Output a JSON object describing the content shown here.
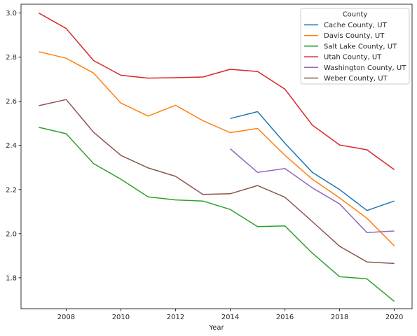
{
  "chart_data": {
    "type": "line",
    "xlabel": "Year",
    "ylabel": "",
    "xlim": [
      2006.35,
      2020.65
    ],
    "ylim": [
      1.66,
      3.04
    ],
    "x_ticks": [
      2008,
      2010,
      2012,
      2014,
      2016,
      2018,
      2020
    ],
    "y_ticks": [
      1.8,
      2.0,
      2.2,
      2.4,
      2.6,
      2.8,
      3.0
    ],
    "x_tick_labels": [
      "2008",
      "2010",
      "2012",
      "2014",
      "2016",
      "2018",
      "2020"
    ],
    "y_tick_labels": [
      "1.8",
      "2.0",
      "2.2",
      "2.4",
      "2.6",
      "2.8",
      "3.0"
    ],
    "grid": false,
    "legend": {
      "title": "County",
      "placement": "top-right"
    },
    "series": [
      {
        "name": "Cache County, UT",
        "color": "#1f77b4",
        "points": [
          [
            2014,
            2.522
          ],
          [
            2015,
            2.553
          ],
          [
            2016,
            2.41
          ],
          [
            2017,
            2.278
          ],
          [
            2018,
            2.2
          ],
          [
            2019,
            2.105
          ],
          [
            2020,
            2.148
          ]
        ]
      },
      {
        "name": "Davis County, UT",
        "color": "#ff7f0e",
        "points": [
          [
            2007,
            2.825
          ],
          [
            2008,
            2.795
          ],
          [
            2009,
            2.728
          ],
          [
            2010,
            2.592
          ],
          [
            2011,
            2.533
          ],
          [
            2012,
            2.582
          ],
          [
            2013,
            2.512
          ],
          [
            2014,
            2.458
          ],
          [
            2015,
            2.477
          ],
          [
            2016,
            2.355
          ],
          [
            2017,
            2.247
          ],
          [
            2018,
            2.162
          ],
          [
            2019,
            2.07
          ],
          [
            2020,
            1.945
          ]
        ]
      },
      {
        "name": "Salt Lake County, UT",
        "color": "#2ca02c",
        "points": [
          [
            2007,
            2.482
          ],
          [
            2008,
            2.453
          ],
          [
            2009,
            2.318
          ],
          [
            2010,
            2.247
          ],
          [
            2011,
            2.167
          ],
          [
            2012,
            2.153
          ],
          [
            2013,
            2.148
          ],
          [
            2014,
            2.11
          ],
          [
            2015,
            2.032
          ],
          [
            2016,
            2.035
          ],
          [
            2017,
            1.912
          ],
          [
            2018,
            1.805
          ],
          [
            2019,
            1.795
          ],
          [
            2020,
            1.693
          ]
        ]
      },
      {
        "name": "Utah County, UT",
        "color": "#d62728",
        "points": [
          [
            2007,
            3.0
          ],
          [
            2008,
            2.93
          ],
          [
            2009,
            2.785
          ],
          [
            2010,
            2.718
          ],
          [
            2011,
            2.705
          ],
          [
            2012,
            2.707
          ],
          [
            2013,
            2.71
          ],
          [
            2014,
            2.745
          ],
          [
            2015,
            2.735
          ],
          [
            2016,
            2.655
          ],
          [
            2017,
            2.492
          ],
          [
            2018,
            2.402
          ],
          [
            2019,
            2.38
          ],
          [
            2020,
            2.29
          ]
        ]
      },
      {
        "name": "Washington County, UT",
        "color": "#9467bd",
        "points": [
          [
            2014,
            2.385
          ],
          [
            2015,
            2.278
          ],
          [
            2016,
            2.295
          ],
          [
            2017,
            2.208
          ],
          [
            2018,
            2.135
          ],
          [
            2019,
            2.005
          ],
          [
            2020,
            2.012
          ]
        ]
      },
      {
        "name": "Weber County, UT",
        "color": "#8c564b",
        "points": [
          [
            2007,
            2.58
          ],
          [
            2008,
            2.608
          ],
          [
            2009,
            2.46
          ],
          [
            2010,
            2.355
          ],
          [
            2011,
            2.298
          ],
          [
            2012,
            2.26
          ],
          [
            2013,
            2.178
          ],
          [
            2014,
            2.181
          ],
          [
            2015,
            2.218
          ],
          [
            2016,
            2.165
          ],
          [
            2017,
            2.055
          ],
          [
            2018,
            1.943
          ],
          [
            2019,
            1.872
          ],
          [
            2020,
            1.865
          ]
        ]
      }
    ]
  }
}
